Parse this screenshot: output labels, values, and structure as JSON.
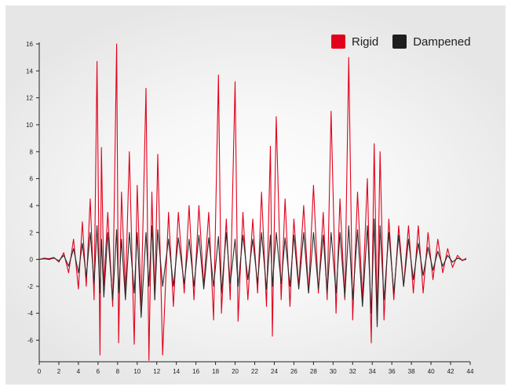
{
  "chart_data": {
    "type": "line",
    "title": "",
    "xlabel": "",
    "ylabel": "",
    "xlim": [
      0,
      44
    ],
    "ylim": [
      -7.6,
      16
    ],
    "x_ticks": [
      0,
      2,
      4,
      6,
      8,
      10,
      12,
      14,
      16,
      18,
      20,
      22,
      24,
      26,
      28,
      30,
      32,
      34,
      36,
      38,
      40,
      42,
      44
    ],
    "y_ticks": [
      -6,
      -4,
      -2,
      0,
      2,
      4,
      6,
      8,
      10,
      12,
      14,
      16
    ],
    "x_tick_labels": [
      "0",
      "2",
      "4",
      "6",
      "8",
      "10",
      "12",
      "14",
      "16",
      "18",
      "20",
      "22",
      "24",
      "26",
      "28",
      "30",
      "32",
      "34",
      "36",
      "38",
      "40",
      "42",
      "44"
    ],
    "y_tick_labels": [
      "-6",
      "-4",
      "-2",
      "0",
      "2",
      "4",
      "6",
      "8",
      "10",
      "12",
      "14",
      "16"
    ],
    "grid": false,
    "legend_position": "top-right",
    "series": [
      {
        "name": "Rigid",
        "color": "#e3001b",
        "x": [
          0,
          0.5,
          1.0,
          1.5,
          2.0,
          2.5,
          3.0,
          3.5,
          4.0,
          4.4,
          4.8,
          5.2,
          5.6,
          5.9,
          6.2,
          6.35,
          6.6,
          7.0,
          7.5,
          7.9,
          8.1,
          8.4,
          8.8,
          9.2,
          9.7,
          10.0,
          10.4,
          10.9,
          11.2,
          11.5,
          11.8,
          12.1,
          12.6,
          13.2,
          13.7,
          14.2,
          14.8,
          15.3,
          15.8,
          16.3,
          16.8,
          17.3,
          17.8,
          18.3,
          18.6,
          19.1,
          19.5,
          20.0,
          20.3,
          20.8,
          21.3,
          21.8,
          22.3,
          22.7,
          23.2,
          23.6,
          23.8,
          24.2,
          24.7,
          25.1,
          25.6,
          26.0,
          26.5,
          27.0,
          27.5,
          28.0,
          28.5,
          29.0,
          29.4,
          29.8,
          30.3,
          30.7,
          31.2,
          31.6,
          32.0,
          32.5,
          33.0,
          33.5,
          33.9,
          34.2,
          34.5,
          34.8,
          35.2,
          35.7,
          36.2,
          36.7,
          37.2,
          37.7,
          38.2,
          38.7,
          39.2,
          39.7,
          40.2,
          40.7,
          41.2,
          41.7,
          42.2,
          42.7,
          43.2,
          43.6
        ],
        "values": [
          0.0,
          0.1,
          0.05,
          0.15,
          -0.2,
          0.5,
          -1.0,
          1.5,
          -2.2,
          2.8,
          -2.0,
          4.5,
          -3.0,
          14.7,
          -7.1,
          8.3,
          -2.0,
          3.5,
          -3.5,
          16.0,
          -6.2,
          5.0,
          -2.5,
          8.0,
          -6.3,
          5.5,
          -3.5,
          12.7,
          -7.5,
          5.0,
          -3.0,
          7.8,
          -7.1,
          3.5,
          -3.5,
          3.5,
          -2.5,
          4.0,
          -3.0,
          4.0,
          -2.0,
          3.5,
          -4.5,
          13.7,
          -4.0,
          3.0,
          -3.0,
          13.2,
          -4.6,
          3.5,
          -3.0,
          3.0,
          -2.5,
          5.0,
          -3.5,
          8.4,
          -5.7,
          10.6,
          -3.0,
          4.5,
          -3.5,
          3.0,
          -2.0,
          4.0,
          -2.5,
          5.5,
          -2.5,
          3.5,
          -3.0,
          11.0,
          -4.0,
          4.5,
          -3.0,
          15.0,
          -4.5,
          5.0,
          -3.0,
          6.0,
          -6.2,
          8.6,
          -4.5,
          8.0,
          -4.5,
          3.0,
          -3.0,
          2.5,
          -2.0,
          2.5,
          -2.5,
          2.5,
          -2.5,
          2.0,
          -1.5,
          1.5,
          -1.0,
          0.8,
          -0.6,
          0.3,
          -0.1,
          0.1
        ]
      },
      {
        "name": "Dampened",
        "color": "#2b2b2b",
        "x": [
          0,
          0.5,
          1.0,
          1.5,
          2.0,
          2.5,
          3.0,
          3.5,
          4.0,
          4.4,
          4.8,
          5.2,
          5.6,
          5.9,
          6.2,
          6.35,
          6.6,
          7.0,
          7.5,
          7.9,
          8.1,
          8.4,
          8.8,
          9.2,
          9.7,
          10.0,
          10.4,
          10.9,
          11.2,
          11.5,
          11.8,
          12.1,
          12.6,
          13.2,
          13.7,
          14.2,
          14.8,
          15.3,
          15.8,
          16.3,
          16.8,
          17.3,
          17.8,
          18.3,
          18.6,
          19.1,
          19.5,
          20.0,
          20.3,
          20.8,
          21.3,
          21.8,
          22.3,
          22.7,
          23.2,
          23.6,
          23.8,
          24.2,
          24.7,
          25.1,
          25.6,
          26.0,
          26.5,
          27.0,
          27.5,
          28.0,
          28.5,
          29.0,
          29.4,
          29.8,
          30.3,
          30.7,
          31.2,
          31.6,
          32.0,
          32.5,
          33.0,
          33.5,
          33.9,
          34.2,
          34.5,
          34.8,
          35.2,
          35.7,
          36.2,
          36.7,
          37.2,
          37.7,
          38.2,
          38.7,
          39.2,
          39.7,
          40.2,
          40.7,
          41.2,
          41.7,
          42.2,
          42.7,
          43.2,
          43.6
        ],
        "values": [
          0.0,
          0.05,
          0.0,
          0.1,
          -0.1,
          0.3,
          -0.5,
          0.8,
          -1.0,
          1.2,
          -1.3,
          2.0,
          -1.8,
          2.5,
          -2.5,
          1.5,
          -2.8,
          2.0,
          -3.0,
          2.2,
          -2.5,
          1.5,
          -3.0,
          2.0,
          -2.5,
          2.0,
          -4.3,
          2.0,
          -2.0,
          2.5,
          -3.0,
          2.2,
          -2.0,
          1.5,
          -2.0,
          1.6,
          -1.8,
          1.5,
          -2.0,
          1.8,
          -2.2,
          1.6,
          -2.0,
          1.7,
          -2.5,
          2.0,
          -1.8,
          1.5,
          -2.0,
          1.8,
          -1.5,
          1.5,
          -1.8,
          2.0,
          -2.2,
          1.8,
          -2.0,
          2.0,
          -1.8,
          1.6,
          -2.0,
          1.8,
          -2.2,
          2.0,
          -2.5,
          2.0,
          -2.2,
          1.8,
          -2.5,
          2.0,
          -2.5,
          2.0,
          -2.8,
          2.5,
          -3.0,
          2.2,
          -3.5,
          2.5,
          -4.0,
          3.0,
          -5.0,
          2.5,
          -3.0,
          2.0,
          -2.5,
          1.8,
          -2.0,
          1.5,
          -1.5,
          1.2,
          -1.2,
          0.9,
          -0.8,
          0.6,
          -0.5,
          0.3,
          -0.2,
          0.1,
          -0.05,
          0.0
        ]
      }
    ]
  }
}
